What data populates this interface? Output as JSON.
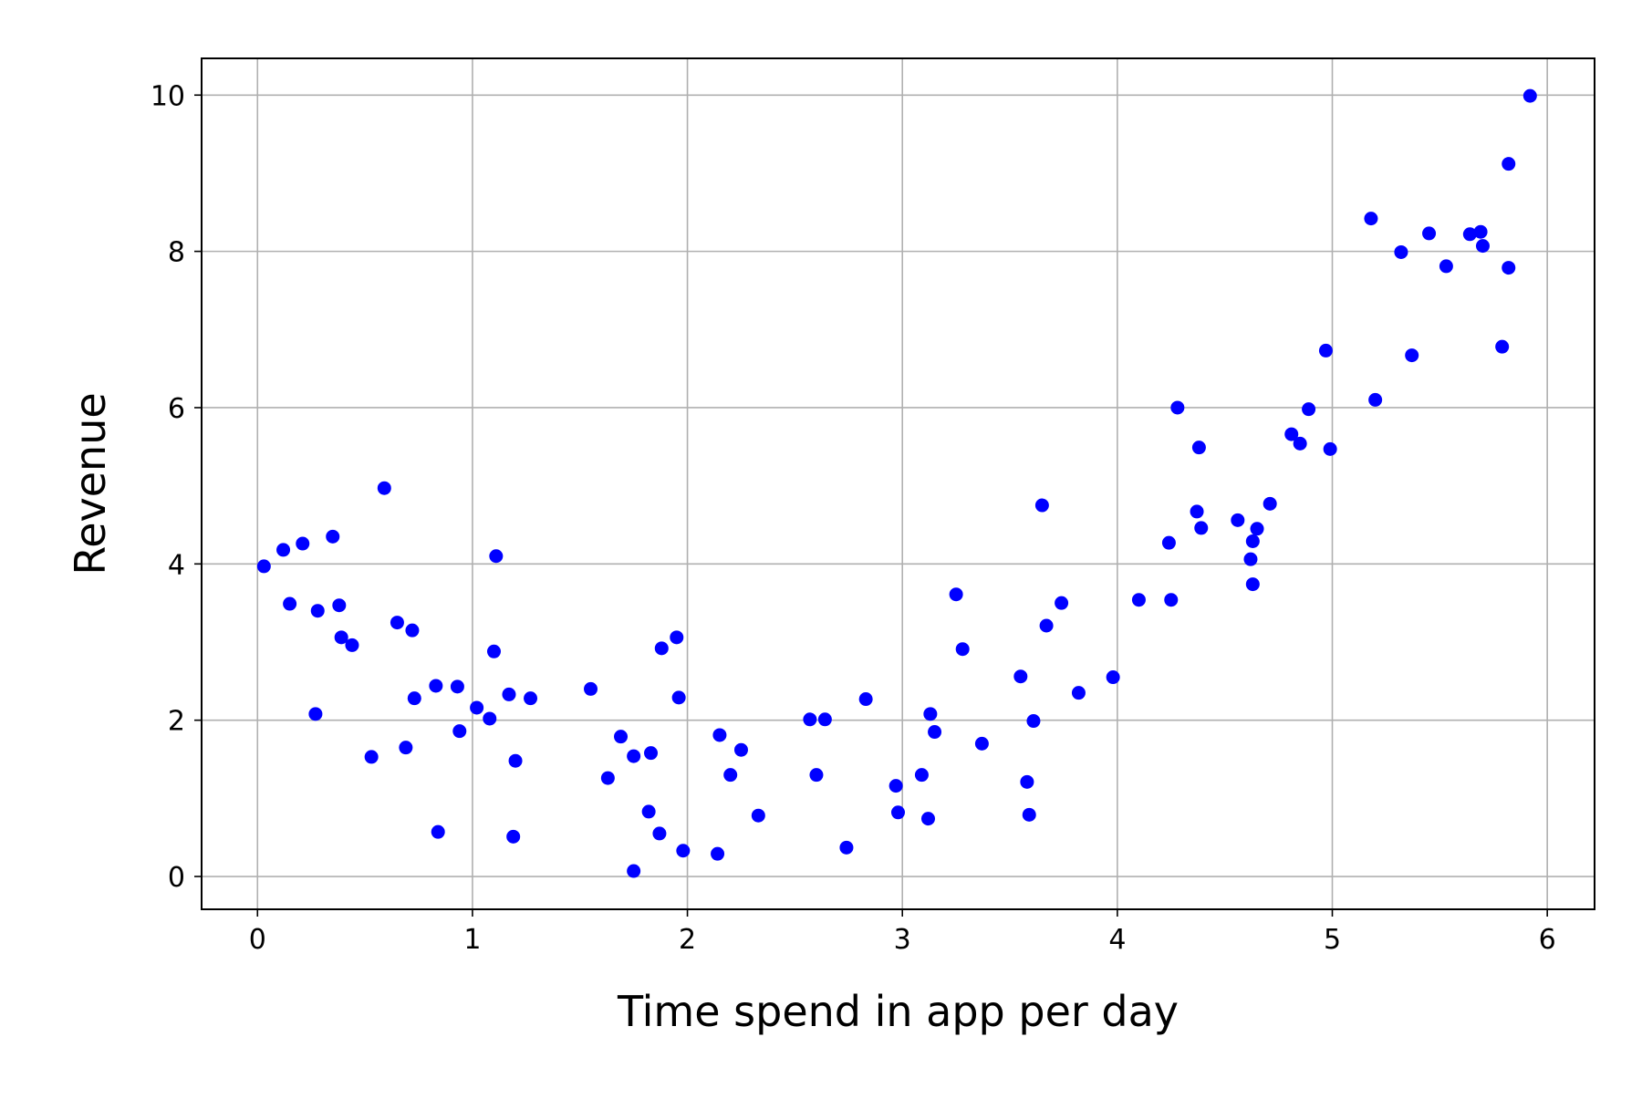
{
  "chart_data": {
    "type": "scatter",
    "title": "",
    "xlabel": "Time spend in app per day",
    "ylabel": "Revenue",
    "xlim": [
      -0.26,
      6.22
    ],
    "ylim": [
      -0.42,
      10.47
    ],
    "xticks": [
      0,
      1,
      2,
      3,
      4,
      5,
      6
    ],
    "xtick_labels": [
      "0",
      "1",
      "2",
      "3",
      "4",
      "5",
      "6"
    ],
    "yticks": [
      0,
      2,
      4,
      6,
      8,
      10
    ],
    "ytick_labels": [
      "0",
      "2",
      "4",
      "6",
      "8",
      "10"
    ],
    "grid": true,
    "marker_color": "#0000ff",
    "series": [
      {
        "points": [
          [
            0.03,
            3.97
          ],
          [
            0.12,
            4.18
          ],
          [
            0.15,
            3.49
          ],
          [
            0.21,
            4.26
          ],
          [
            0.27,
            2.08
          ],
          [
            0.28,
            3.4
          ],
          [
            0.35,
            4.35
          ],
          [
            0.38,
            3.47
          ],
          [
            0.39,
            3.06
          ],
          [
            0.44,
            2.96
          ],
          [
            0.53,
            1.53
          ],
          [
            0.59,
            4.97
          ],
          [
            0.65,
            3.25
          ],
          [
            0.69,
            1.65
          ],
          [
            0.72,
            3.15
          ],
          [
            0.73,
            2.28
          ],
          [
            0.83,
            2.44
          ],
          [
            0.84,
            0.57
          ],
          [
            0.93,
            2.43
          ],
          [
            0.94,
            1.86
          ],
          [
            1.02,
            2.16
          ],
          [
            1.08,
            2.02
          ],
          [
            1.1,
            2.88
          ],
          [
            1.11,
            4.1
          ],
          [
            1.17,
            2.33
          ],
          [
            1.19,
            0.51
          ],
          [
            1.2,
            1.48
          ],
          [
            1.27,
            2.28
          ],
          [
            1.55,
            2.4
          ],
          [
            1.63,
            1.26
          ],
          [
            1.69,
            1.79
          ],
          [
            1.75,
            0.07
          ],
          [
            1.75,
            1.54
          ],
          [
            1.82,
            0.83
          ],
          [
            1.83,
            1.58
          ],
          [
            1.87,
            0.55
          ],
          [
            1.88,
            2.92
          ],
          [
            1.95,
            3.06
          ],
          [
            1.96,
            2.29
          ],
          [
            1.98,
            0.33
          ],
          [
            2.14,
            0.29
          ],
          [
            2.15,
            1.81
          ],
          [
            2.2,
            1.3
          ],
          [
            2.25,
            1.62
          ],
          [
            2.33,
            0.78
          ],
          [
            2.57,
            2.01
          ],
          [
            2.6,
            1.3
          ],
          [
            2.64,
            2.01
          ],
          [
            2.74,
            0.37
          ],
          [
            2.83,
            2.27
          ],
          [
            2.97,
            1.16
          ],
          [
            2.98,
            0.82
          ],
          [
            3.09,
            1.3
          ],
          [
            3.12,
            0.74
          ],
          [
            3.13,
            2.08
          ],
          [
            3.15,
            1.85
          ],
          [
            3.25,
            3.61
          ],
          [
            3.28,
            2.91
          ],
          [
            3.37,
            1.7
          ],
          [
            3.55,
            2.56
          ],
          [
            3.58,
            1.21
          ],
          [
            3.59,
            0.79
          ],
          [
            3.61,
            1.99
          ],
          [
            3.65,
            4.75
          ],
          [
            3.67,
            3.21
          ],
          [
            3.74,
            3.5
          ],
          [
            3.82,
            2.35
          ],
          [
            3.98,
            2.55
          ],
          [
            4.1,
            3.54
          ],
          [
            4.24,
            4.27
          ],
          [
            4.25,
            3.54
          ],
          [
            4.28,
            6.0
          ],
          [
            4.37,
            4.67
          ],
          [
            4.38,
            5.49
          ],
          [
            4.39,
            4.46
          ],
          [
            4.56,
            4.56
          ],
          [
            4.62,
            4.06
          ],
          [
            4.63,
            4.29
          ],
          [
            4.63,
            3.74
          ],
          [
            4.65,
            4.45
          ],
          [
            4.71,
            4.77
          ],
          [
            4.81,
            5.66
          ],
          [
            4.85,
            5.54
          ],
          [
            4.89,
            5.98
          ],
          [
            4.97,
            6.73
          ],
          [
            4.99,
            5.47
          ],
          [
            5.18,
            8.42
          ],
          [
            5.2,
            6.1
          ],
          [
            5.32,
            7.99
          ],
          [
            5.37,
            6.67
          ],
          [
            5.45,
            8.23
          ],
          [
            5.53,
            7.81
          ],
          [
            5.64,
            8.22
          ],
          [
            5.69,
            8.25
          ],
          [
            5.7,
            8.07
          ],
          [
            5.79,
            6.78
          ],
          [
            5.82,
            9.12
          ],
          [
            5.82,
            7.79
          ],
          [
            5.92,
            9.99
          ]
        ]
      }
    ]
  }
}
